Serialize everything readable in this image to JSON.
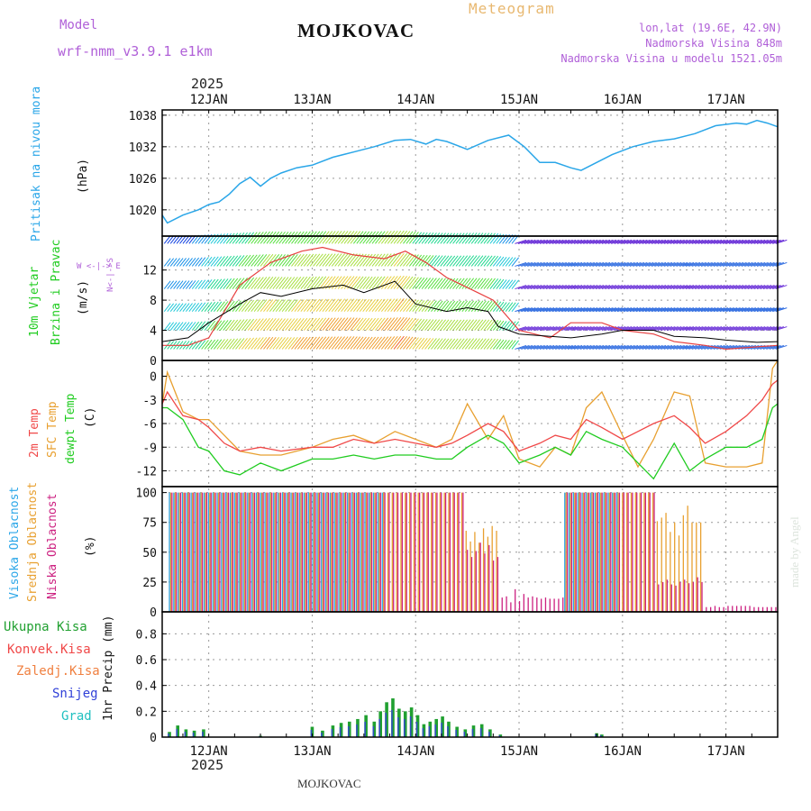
{
  "header": {
    "model_label": "Model",
    "model_name": "wrf-nmm_v3.9.1 e1km",
    "station": "MOJKOVAC",
    "chart_title": "Meteogram",
    "coords": "lon,lat (19.6E, 42.9N)",
    "elevation": "Nadmorska Visina 848m",
    "model_elevation": "Nadmorska Visina u modelu 1521.05m",
    "year_top": "2025",
    "year_bottom": "2025",
    "footer_station": "MOJKOVAC",
    "credit": "made by Angel"
  },
  "colors": {
    "pressure": "#2aa6e8",
    "temp2m": "#f04848",
    "sfc": "#e8a030",
    "dewpt": "#20cc20",
    "high_cloud": "#2aa6e8",
    "mid_cloud": "#e8a030",
    "low_cloud": "#cc2080",
    "precip_total": "#20a030",
    "precip_snow": "#3050c0",
    "wind_speed": "#000000",
    "gust": "#e84040",
    "wind_compass": "#b060d8",
    "model_text": "#b060d8"
  },
  "chart_data": {
    "type": "line",
    "time_axis": {
      "ticks": [
        "12JAN",
        "13JAN",
        "14JAN",
        "15JAN",
        "16JAN",
        "17JAN"
      ],
      "start_day": 11.55,
      "end_day": 17.5
    },
    "pressure": {
      "ylabel": "Pritisak na nivou mora",
      "unit": "(hPa)",
      "ylim": [
        1015,
        1039
      ],
      "yticks": [
        1020,
        1026,
        1032,
        1038
      ],
      "x": [
        11.55,
        11.6,
        11.75,
        11.9,
        12.0,
        12.1,
        12.2,
        12.3,
        12.4,
        12.5,
        12.6,
        12.7,
        12.85,
        13.0,
        13.2,
        13.4,
        13.6,
        13.8,
        13.95,
        14.1,
        14.2,
        14.3,
        14.5,
        14.7,
        14.9,
        15.05,
        15.2,
        15.35,
        15.5,
        15.6,
        15.75,
        15.9,
        16.1,
        16.3,
        16.5,
        16.7,
        16.9,
        17.1,
        17.2,
        17.3,
        17.4,
        17.5
      ],
      "values": [
        1019,
        1017.5,
        1019,
        1020,
        1021,
        1021.5,
        1023,
        1025,
        1026.2,
        1024.5,
        1026,
        1027,
        1028,
        1028.5,
        1030,
        1031,
        1032,
        1033.2,
        1033.4,
        1032.5,
        1033.4,
        1033,
        1031.5,
        1033.2,
        1034.2,
        1032,
        1029,
        1029,
        1028,
        1027.5,
        1029,
        1030.5,
        1032,
        1033,
        1033.5,
        1034.5,
        1036,
        1036.5,
        1036.3,
        1037,
        1036.5,
        1035.8
      ]
    },
    "wind": {
      "ylabel": "10m Vjetar Brzina i Pravac",
      "unit": "(m/s)",
      "compass": "W <-|-> E",
      "compass_ns": "N<-|->S",
      "ylim": [
        0,
        16.5
      ],
      "yticks": [
        0,
        4,
        8,
        12
      ],
      "speed_x": [
        11.55,
        11.8,
        12.0,
        12.3,
        12.5,
        12.7,
        13.0,
        13.3,
        13.5,
        13.8,
        14.0,
        14.3,
        14.5,
        14.7,
        14.8,
        15.0,
        15.3,
        15.5,
        15.8,
        16.0,
        16.3,
        16.5,
        16.8,
        17.0,
        17.3,
        17.5
      ],
      "speed_y": [
        2.5,
        3,
        5,
        7.5,
        9,
        8.5,
        9.5,
        10,
        9,
        10.5,
        7.5,
        6.5,
        7,
        6.5,
        4.5,
        3.5,
        3.2,
        3,
        3.5,
        4,
        4,
        3.2,
        3,
        2.7,
        2.4,
        2.5
      ],
      "gust_x": [
        11.55,
        11.8,
        12.0,
        12.3,
        12.6,
        12.9,
        13.1,
        13.4,
        13.7,
        13.9,
        14.1,
        14.3,
        14.6,
        14.75,
        15.0,
        15.3,
        15.5,
        15.8,
        16.0,
        16.3,
        16.5,
        16.8,
        17.0,
        17.3,
        17.5
      ],
      "gust_y": [
        2,
        2,
        3,
        10,
        13,
        14.5,
        15,
        14,
        13.5,
        14.5,
        13,
        11,
        9,
        8,
        4,
        3,
        5,
        5,
        4,
        3.5,
        2.5,
        2,
        1.5,
        1.8,
        2
      ]
    },
    "temperature": {
      "ylabels": [
        "2m Temp",
        "SFC Temp",
        "dewpt Temp"
      ],
      "unit": "(C)",
      "ylim": [
        -14,
        2
      ],
      "yticks": [
        0,
        -3,
        -6,
        -9,
        -12
      ],
      "x": [
        11.55,
        11.6,
        11.75,
        11.9,
        12.0,
        12.15,
        12.3,
        12.5,
        12.7,
        13.0,
        13.2,
        13.4,
        13.6,
        13.8,
        14.0,
        14.2,
        14.35,
        14.5,
        14.7,
        14.85,
        15.0,
        15.2,
        15.35,
        15.5,
        15.65,
        15.8,
        16.0,
        16.15,
        16.3,
        16.5,
        16.65,
        16.8,
        17.0,
        17.2,
        17.35,
        17.45,
        17.5
      ],
      "temp2m": [
        -3.5,
        -2,
        -5,
        -5.5,
        -6.5,
        -8.5,
        -9.5,
        -9,
        -9.5,
        -9,
        -9,
        -8,
        -8.5,
        -8,
        -8.5,
        -9,
        -8.5,
        -7.5,
        -6,
        -7,
        -9.5,
        -8.5,
        -7.5,
        -8,
        -5.5,
        -6.5,
        -8,
        -7,
        -6,
        -5,
        -6.5,
        -8.5,
        -7,
        -5,
        -3,
        -1,
        -0.5
      ],
      "sfc": [
        -3.5,
        0.5,
        -4.5,
        -5.5,
        -5.5,
        -7.5,
        -9.5,
        -10,
        -10,
        -9,
        -8,
        -7.5,
        -8.5,
        -7,
        -8,
        -9,
        -8,
        -3.5,
        -8,
        -5,
        -10.5,
        -11.5,
        -9,
        -10,
        -4,
        -2,
        -7.5,
        -11.5,
        -8,
        -2,
        -2.5,
        -11,
        -11.5,
        -11.5,
        -11,
        1,
        2
      ],
      "dewpt": [
        -4,
        -4,
        -5.5,
        -9,
        -9.5,
        -12,
        -12.5,
        -11,
        -12,
        -10.5,
        -10.5,
        -10,
        -10.5,
        -10,
        -10,
        -10.5,
        -10.5,
        -9,
        -7.5,
        -8.5,
        -11,
        -10,
        -9,
        -10,
        -7,
        -8,
        -9,
        -11,
        -13,
        -8.5,
        -12,
        -10.5,
        -9,
        -9,
        -8,
        -4,
        -3.5
      ]
    },
    "clouds": {
      "ylabels": [
        "Visoka Oblacnost",
        "Srednja Oblacnost",
        "Niska Oblacnost"
      ],
      "unit": "(%)",
      "ylim": [
        0,
        105
      ],
      "yticks": [
        0,
        25,
        50,
        75,
        100
      ]
    },
    "precip": {
      "legend": [
        "Ukupna Kisa",
        "Konvek.Kisa",
        "Zaledj.Kisa",
        "Snijeg",
        "Grad"
      ],
      "ylabel": "1hr Precip (mm)",
      "ylim": [
        0,
        0.97
      ],
      "yticks": [
        0,
        0.2,
        0.4,
        0.6,
        0.8
      ]
    }
  }
}
